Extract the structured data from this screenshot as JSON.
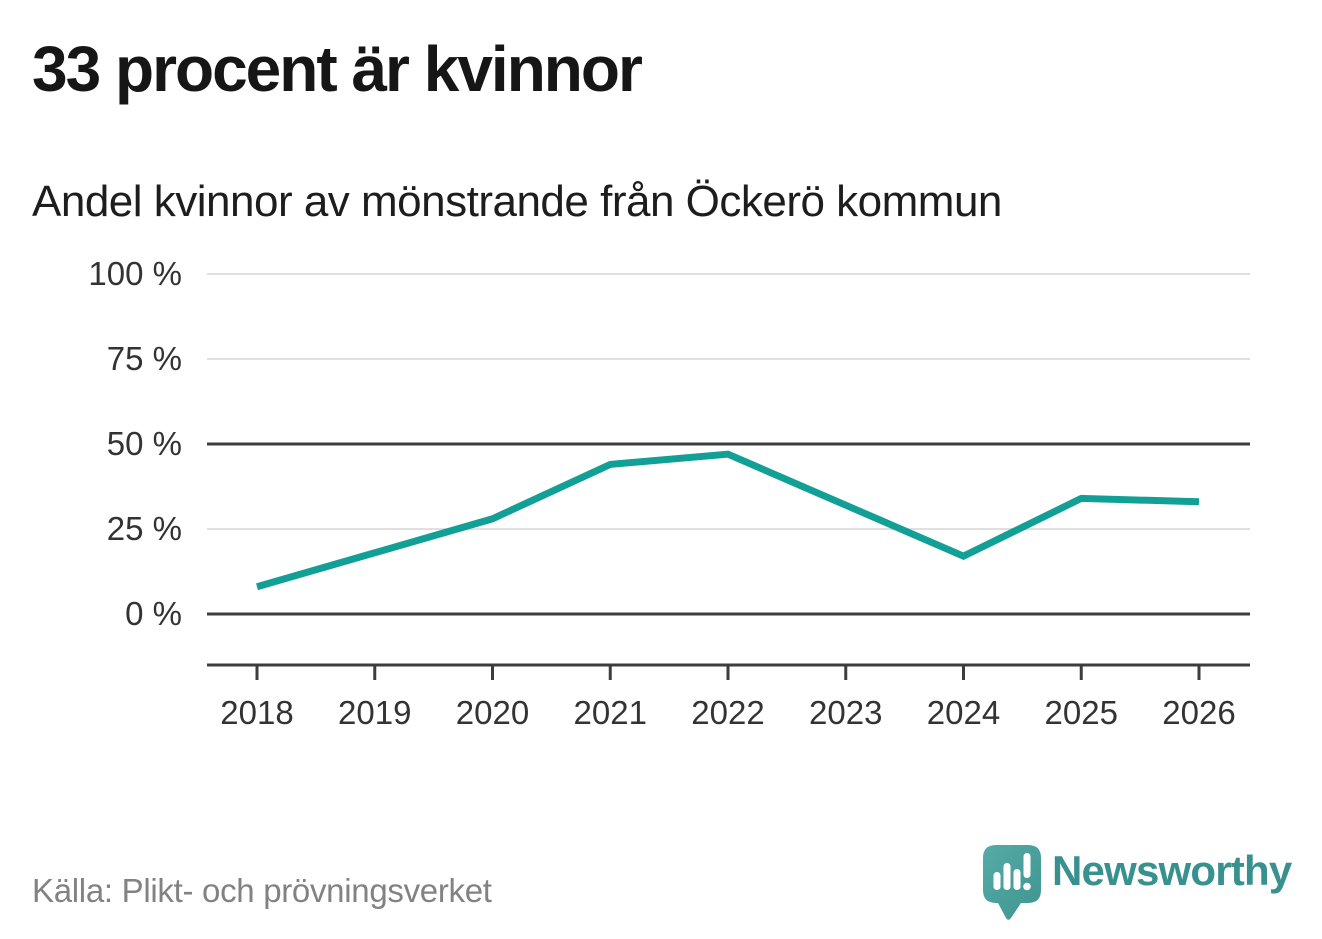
{
  "header": {
    "title": "33 procent är kvinnor",
    "subtitle": "Andel kvinnor av mönstrande från Öckerö kommun"
  },
  "chart_data": {
    "type": "line",
    "title": "33 procent är kvinnor",
    "subtitle": "Andel kvinnor av mönstrande från Öckerö kommun",
    "categories": [
      "2018",
      "2019",
      "2020",
      "2021",
      "2022",
      "2023",
      "2024",
      "2025",
      "2026"
    ],
    "series": [
      {
        "name": "Andel kvinnor av mönstrande",
        "unit": "%",
        "values": [
          8,
          18,
          28,
          44,
          47,
          32,
          17,
          34,
          33
        ]
      }
    ],
    "ylim": [
      0,
      100
    ],
    "yticks": [
      {
        "value": 0,
        "label": "0 %",
        "strong": true
      },
      {
        "value": 25,
        "label": "25 %",
        "strong": false
      },
      {
        "value": 50,
        "label": "50 %",
        "strong": true
      },
      {
        "value": 75,
        "label": "75 %",
        "strong": false
      },
      {
        "value": 100,
        "label": "100 %",
        "strong": false
      }
    ],
    "grid": true,
    "legend": "none",
    "colors": {
      "line": "#12A096",
      "strong_grid": "#3D3D3D",
      "light_grid": "#E0E0E0",
      "axis_text": "#333333"
    }
  },
  "footer": {
    "source": "Källa: Plikt- och prövningsverket",
    "brand": "Newsworthy",
    "brand_color": "#38918F",
    "logo_icon_color": "#4BA19D",
    "logo_icon": "speech-bubble-bar-chart-exclamation"
  }
}
